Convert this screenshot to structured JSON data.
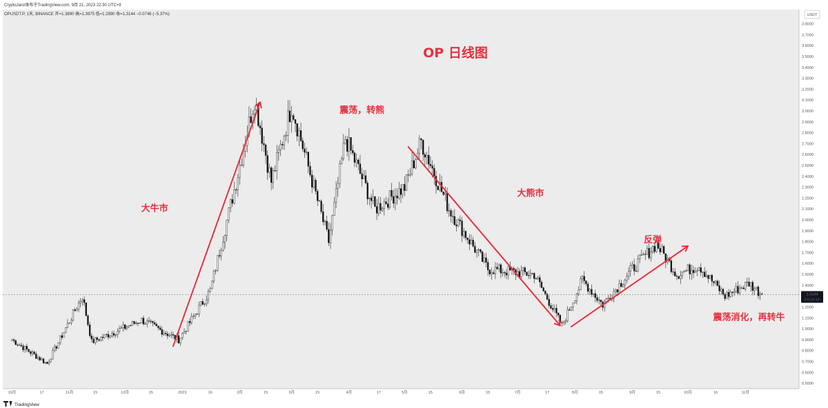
{
  "header": {
    "publisher": "CryptoJarol发布于TradingView.com,  9月 21, 2023 22:30 UTC+8",
    "symbol_line": "OPUSDT.P, 1天, BINANCE  开=1.3890  高=1.3975  低=1.2890  收=1.3144  −0.0746 (−5.37%)"
  },
  "currency_badge": "USDT",
  "last_price": {
    "value": "1.3144",
    "countdown": "09:29:19",
    "color": "#131722"
  },
  "footer_logo": "TradingView",
  "colors": {
    "bull": "#ffffff",
    "bear": "#111111",
    "wick": "#222222",
    "annotation": "#e8303f",
    "plot_bg": "#ececec"
  },
  "chart_data": {
    "type": "candlestick",
    "title": "OP 日线图",
    "ylim": [
      0.45,
      3.93
    ],
    "y_ticks": [
      "0.5000",
      "0.6000",
      "0.7000",
      "0.8000",
      "0.9000",
      "1.0000",
      "1.1000",
      "1.2000",
      "1.3000",
      "1.4000",
      "1.5000",
      "1.6000",
      "1.7000",
      "1.8000",
      "1.9000",
      "2.0000",
      "2.1000",
      "2.2000",
      "2.3000",
      "2.4000",
      "2.5000",
      "2.6000",
      "2.7000",
      "2.8000",
      "2.9000",
      "3.0000",
      "3.1000",
      "3.2000",
      "3.3000",
      "3.4000",
      "3.5000",
      "3.6000",
      "3.7000",
      "3.8000"
    ],
    "x_ticks": [
      "10月",
      "17",
      "11月",
      "15",
      "12月",
      "15",
      "2023",
      "16",
      "2月",
      "15",
      "3月",
      "15",
      "4月",
      "17",
      "5月",
      "15",
      "6月",
      "15",
      "7月",
      "17",
      "8月",
      "15",
      "9月",
      "15",
      "10月",
      "16",
      "11月"
    ],
    "key_points": [
      {
        "date": "2022-10-01",
        "close": 0.9
      },
      {
        "date": "2022-10-20",
        "close": 0.68
      },
      {
        "date": "2022-11-08",
        "close": 1.3
      },
      {
        "date": "2022-11-13",
        "close": 0.88
      },
      {
        "date": "2022-12-10",
        "close": 1.08
      },
      {
        "date": "2022-12-30",
        "close": 0.9
      },
      {
        "date": "2023-01-16",
        "close": 1.35
      },
      {
        "date": "2023-01-30",
        "close": 2.35
      },
      {
        "date": "2023-02-09",
        "close": 3.12
      },
      {
        "date": "2023-02-18",
        "close": 2.35
      },
      {
        "date": "2023-03-01",
        "close": 3.05
      },
      {
        "date": "2023-03-21",
        "close": 1.8
      },
      {
        "date": "2023-03-30",
        "close": 2.75
      },
      {
        "date": "2023-04-15",
        "close": 2.1
      },
      {
        "date": "2023-05-01",
        "close": 2.3
      },
      {
        "date": "2023-05-10",
        "close": 2.72
      },
      {
        "date": "2023-05-25",
        "close": 2.1
      },
      {
        "date": "2023-06-15",
        "close": 1.55
      },
      {
        "date": "2023-07-10",
        "close": 1.5
      },
      {
        "date": "2023-07-25",
        "close": 1.03
      },
      {
        "date": "2023-08-05",
        "close": 1.45
      },
      {
        "date": "2023-08-16",
        "close": 1.22
      },
      {
        "date": "2023-09-01",
        "close": 1.55
      },
      {
        "date": "2023-09-14",
        "close": 1.78
      },
      {
        "date": "2023-09-25",
        "close": 1.5
      },
      {
        "date": "2023-10-07",
        "close": 1.58
      },
      {
        "date": "2023-10-21",
        "close": 1.3
      },
      {
        "date": "2023-11-03",
        "close": 1.42
      },
      {
        "date": "2023-11-10",
        "close": 1.3144
      }
    ],
    "annotations": [
      {
        "text": "大牛市",
        "date": "2022-12-17",
        "price": 2.08
      },
      {
        "text": "震荡，转熊",
        "date": "2023-04-08",
        "price": 2.98
      },
      {
        "text": "大熊市",
        "date": "2023-07-08",
        "price": 2.22
      },
      {
        "text": "反弹",
        "date": "2023-09-12",
        "price": 1.79
      },
      {
        "text": "震荡消化，再转牛",
        "date": "2023-11-03",
        "price": 1.08
      }
    ],
    "trend_lines": [
      {
        "from": {
          "date": "2022-12-27",
          "price": 0.84
        },
        "to": {
          "date": "2023-02-12",
          "price": 3.08
        },
        "arrow": true
      },
      {
        "from": {
          "date": "2023-05-03",
          "price": 2.67
        },
        "to": {
          "date": "2023-07-24",
          "price": 1.03
        },
        "arrow": true
      },
      {
        "from": {
          "date": "2023-07-30",
          "price": 1.02
        },
        "to": {
          "date": "2023-10-01",
          "price": 1.76
        },
        "arrow": true
      }
    ]
  }
}
